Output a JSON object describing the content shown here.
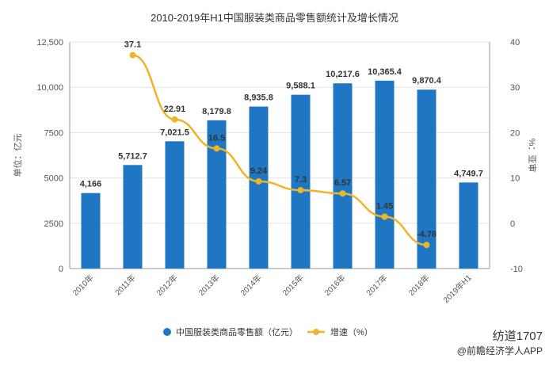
{
  "chart_data": {
    "type": "bar",
    "title": "2010-2019年H1中国服装类商品零售额统计及增长情况",
    "categories": [
      "2010年",
      "2011年",
      "2012年",
      "2013年",
      "2014年",
      "2015年",
      "2016年",
      "2017年",
      "2018年",
      "2019年H1"
    ],
    "series": [
      {
        "name": "中国服装类商品零售额（亿元）",
        "type": "bar",
        "axis": "left",
        "values": [
          4166,
          5712.7,
          7021.5,
          8179.8,
          8935.8,
          9588.1,
          10217.6,
          10365.4,
          9870.4,
          4749.7
        ],
        "labels": [
          "4,166",
          "5,712.7",
          "7,021.5",
          "8,179.8",
          "8,935.8",
          "9,588.1",
          "10,217.6",
          "10,365.4",
          "9,870.4",
          "4,749.7"
        ]
      },
      {
        "name": "增速（%）",
        "type": "line",
        "axis": "right",
        "values": [
          null,
          37.1,
          22.91,
          16.5,
          9.24,
          7.3,
          6.57,
          1.45,
          -4.78,
          null
        ],
        "labels": [
          "",
          "37.1",
          "22.91",
          "16.5",
          "9.24",
          "7.3",
          "6.57",
          "1.45",
          "-4.78",
          ""
        ]
      }
    ],
    "ylabel": "单位：亿元",
    "y2label": "%：亚审",
    "ylim": [
      0,
      12500
    ],
    "y2lim": [
      -10,
      40
    ],
    "yticks": [
      "0",
      "2500",
      "5000",
      "7500",
      "10,000",
      "12,500"
    ],
    "y2ticks": [
      "-10",
      "0",
      "10",
      "20",
      "30",
      "40"
    ],
    "legend": "bottom",
    "colors": {
      "bar": "#1f77c4",
      "line": "#f0b429"
    }
  },
  "watermark": {
    "line1": "纺道1707",
    "line2": "@前瞻经济学人APP"
  }
}
